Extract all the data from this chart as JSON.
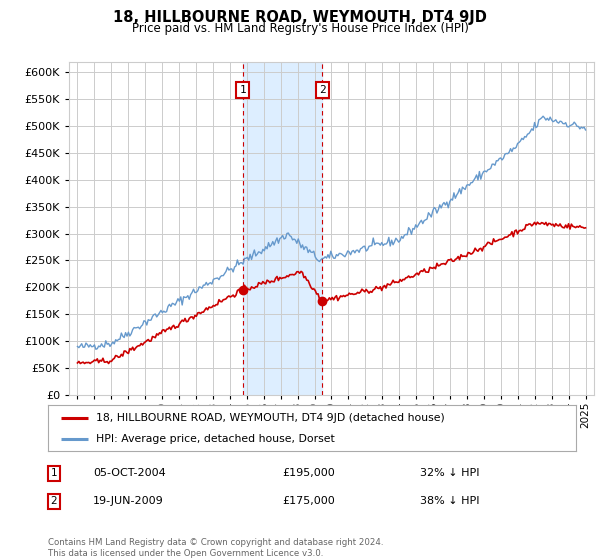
{
  "title": "18, HILLBOURNE ROAD, WEYMOUTH, DT4 9JD",
  "subtitle": "Price paid vs. HM Land Registry's House Price Index (HPI)",
  "legend_line1": "18, HILLBOURNE ROAD, WEYMOUTH, DT4 9JD (detached house)",
  "legend_line2": "HPI: Average price, detached house, Dorset",
  "transaction1_date": "05-OCT-2004",
  "transaction1_price": 195000,
  "transaction1_label": "32% ↓ HPI",
  "transaction2_date": "19-JUN-2009",
  "transaction2_price": 175000,
  "transaction2_label": "38% ↓ HPI",
  "footer": "Contains HM Land Registry data © Crown copyright and database right 2024.\nThis data is licensed under the Open Government Licence v3.0.",
  "hpi_color": "#6699cc",
  "price_color": "#cc0000",
  "background_color": "#ffffff",
  "grid_color": "#cccccc",
  "shading_color": "#ddeeff",
  "ylim": [
    0,
    620000
  ],
  "yticks": [
    0,
    50000,
    100000,
    150000,
    200000,
    250000,
    300000,
    350000,
    400000,
    450000,
    500000,
    550000,
    600000
  ],
  "transaction1_x": 2004.75,
  "transaction2_x": 2009.46,
  "xlim_left": 1994.5,
  "xlim_right": 2025.5
}
